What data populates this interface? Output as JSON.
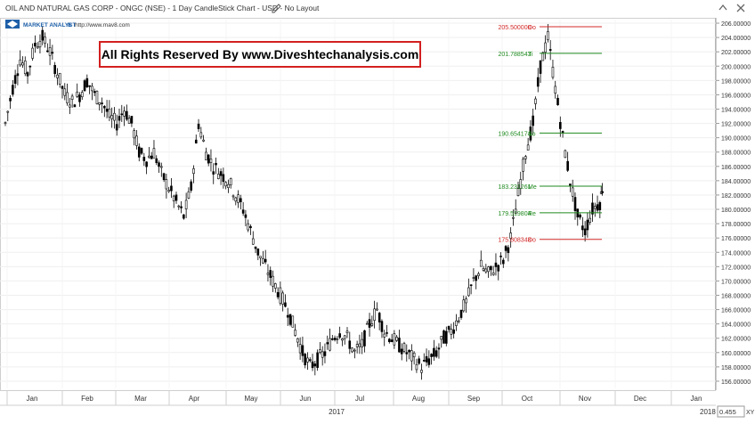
{
  "window": {
    "title": "OIL AND NATURAL GAS CORP - ONGC (NSE) - 1 Day CandleStick Chart - USD - No Layout",
    "pencil_icon": "pencil-icon",
    "right_icons": [
      "chevron-up-icon",
      "close-icon"
    ]
  },
  "brand": {
    "name": "MARKET ANALYST",
    "version": "8",
    "url": "http://www.mav8.com",
    "logo_icon": "diamond-logo-icon"
  },
  "watermark": {
    "text": "All Rights Reserved By www.Diveshtechanalysis.com",
    "border_color": "#d32020"
  },
  "chart_data": {
    "type": "candlestick",
    "title": "OIL AND NATURAL GAS CORP - ONGC (NSE) - 1 Day CandleStick Chart - USD - No Layout",
    "ylim": [
      155,
      206.5
    ],
    "ytick_values": [
      156,
      158,
      160,
      162,
      164,
      166,
      168,
      170,
      172,
      174,
      176,
      178,
      180,
      182,
      184,
      186,
      188,
      190,
      192,
      194,
      196,
      198,
      200,
      202,
      204,
      206
    ],
    "ytick_labels": [
      "156.00000",
      "158.00000",
      "160.00000",
      "162.00000",
      "164.00000",
      "166.00000",
      "168.00000",
      "170.00000",
      "172.00000",
      "174.00000",
      "176.00000",
      "178.00000",
      "180.00000",
      "182.00000",
      "184.00000",
      "186.00000",
      "188.00000",
      "190.00000",
      "192.00000",
      "194.00000",
      "196.00000",
      "198.00000",
      "200.00000",
      "202.00000",
      "204.00000",
      "206.00000"
    ],
    "months": [
      "Jan",
      "Feb",
      "Mar",
      "Apr",
      "May",
      "Jun",
      "Jul",
      "Aug",
      "Sep",
      "Oct",
      "Nov",
      "Dec",
      "Jan"
    ],
    "year_label": "2017",
    "year_right": "2018",
    "close_path_points": [
      [
        0,
        192
      ],
      [
        2,
        197
      ],
      [
        4,
        201
      ],
      [
        6,
        199
      ],
      [
        8,
        203
      ],
      [
        10,
        204
      ],
      [
        12,
        202
      ],
      [
        14,
        199
      ],
      [
        16,
        196
      ],
      [
        18,
        195
      ],
      [
        20,
        196
      ],
      [
        22,
        198
      ],
      [
        24,
        196
      ],
      [
        26,
        195
      ],
      [
        28,
        193
      ],
      [
        30,
        192
      ],
      [
        32,
        194
      ],
      [
        34,
        192
      ],
      [
        36,
        188
      ],
      [
        38,
        187
      ],
      [
        40,
        188
      ],
      [
        42,
        185
      ],
      [
        44,
        183
      ],
      [
        46,
        181
      ],
      [
        48,
        179
      ],
      [
        50,
        183
      ],
      [
        52,
        192
      ],
      [
        54,
        188
      ],
      [
        56,
        186
      ],
      [
        58,
        185
      ],
      [
        60,
        184
      ],
      [
        62,
        182
      ],
      [
        64,
        180
      ],
      [
        66,
        177
      ],
      [
        68,
        174
      ],
      [
        70,
        172
      ],
      [
        72,
        170
      ],
      [
        74,
        168
      ],
      [
        76,
        166
      ],
      [
        78,
        163
      ],
      [
        80,
        160
      ],
      [
        82,
        158
      ],
      [
        84,
        159
      ],
      [
        86,
        160
      ],
      [
        88,
        162
      ],
      [
        90,
        163
      ],
      [
        92,
        162
      ],
      [
        94,
        160
      ],
      [
        96,
        161
      ],
      [
        98,
        164
      ],
      [
        100,
        166
      ],
      [
        102,
        163
      ],
      [
        104,
        162
      ],
      [
        106,
        161
      ],
      [
        108,
        160
      ],
      [
        110,
        159
      ],
      [
        112,
        158
      ],
      [
        114,
        159
      ],
      [
        116,
        160
      ],
      [
        118,
        162
      ],
      [
        120,
        163
      ],
      [
        122,
        165
      ],
      [
        124,
        167
      ],
      [
        126,
        170
      ],
      [
        128,
        172
      ],
      [
        130,
        171
      ],
      [
        132,
        172
      ],
      [
        134,
        173
      ],
      [
        136,
        176
      ],
      [
        138,
        182
      ],
      [
        140,
        188
      ],
      [
        142,
        192
      ],
      [
        144,
        200
      ],
      [
        146,
        204
      ],
      [
        148,
        197
      ],
      [
        150,
        190
      ],
      [
        152,
        184
      ],
      [
        154,
        179
      ],
      [
        156,
        177
      ],
      [
        158,
        180
      ],
      [
        160,
        181
      ],
      [
        161,
        184
      ]
    ],
    "levels": [
      {
        "value": 205.5,
        "label": "205.500000",
        "tag": "Do",
        "color": "#d42a2a"
      },
      {
        "value": 201.788543,
        "label": "201.788543",
        "tag": "Ti",
        "color": "#1f8a1f"
      },
      {
        "value": 190.654174,
        "label": "190.654174",
        "tag": "So",
        "color": "#1f8a1f"
      },
      {
        "value": 183.231261,
        "label": "183.231261",
        "tag": "Me",
        "color": "#1f8a1f"
      },
      {
        "value": 179.519804,
        "label": "179.519804",
        "tag": "Re",
        "color": "#1f8a1f"
      },
      {
        "value": 175.808348,
        "label": "175.808348",
        "tag": "Do",
        "color": "#d42a2a"
      }
    ],
    "grid": true,
    "candle_color": "#000000"
  },
  "bottom_right": {
    "year": "2018",
    "value_box": "0.455",
    "axis_tag": "XY"
  }
}
